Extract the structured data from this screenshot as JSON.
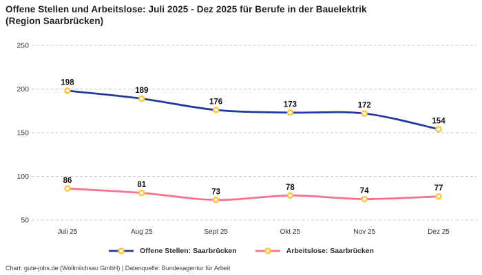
{
  "header": {
    "title_line1": "Offene Stellen und Arbeitslose: Juli 2025 - Dez 2025 für Berufe in der Bauelektrik",
    "title_line2": "(Region Saarbrücken)"
  },
  "chart_data": {
    "type": "line",
    "title": "Offene Stellen und Arbeitslose: Juli 2025 - Dez 2025 für Berufe in der Bauelektrik (Region Saarbrücken)",
    "categories": [
      "Juli 25",
      "Aug 25",
      "Sept 25",
      "Okt 25",
      "Nov 25",
      "Dez 25"
    ],
    "series": [
      {
        "name": "Offene Stellen: Saarbrücken",
        "values": [
          198,
          189,
          176,
          173,
          172,
          154
        ],
        "color": "#22389f",
        "marker_color": "#ffc53d",
        "marker_fill": "#ffffff"
      },
      {
        "name": "Arbeitslose: Saarbrücken",
        "values": [
          86,
          81,
          73,
          78,
          74,
          77
        ],
        "color": "#fa7189",
        "marker_color": "#ffc53d",
        "marker_fill": "#ffffff"
      }
    ],
    "ylim": [
      50,
      250
    ],
    "yticks": [
      50,
      100,
      150,
      200,
      250
    ],
    "grid": "horizontal-dashed",
    "grid_color": "#c8c8c8",
    "data_labels": true,
    "data_label_color": "#111111",
    "axis_label_color": "#333333",
    "legend_position": "bottom"
  },
  "footer": {
    "credit": "Chart: gute-jobs.de (Wollmilchsau GmbH) | Datenquelle: Bundesagentur für Arbeit"
  }
}
